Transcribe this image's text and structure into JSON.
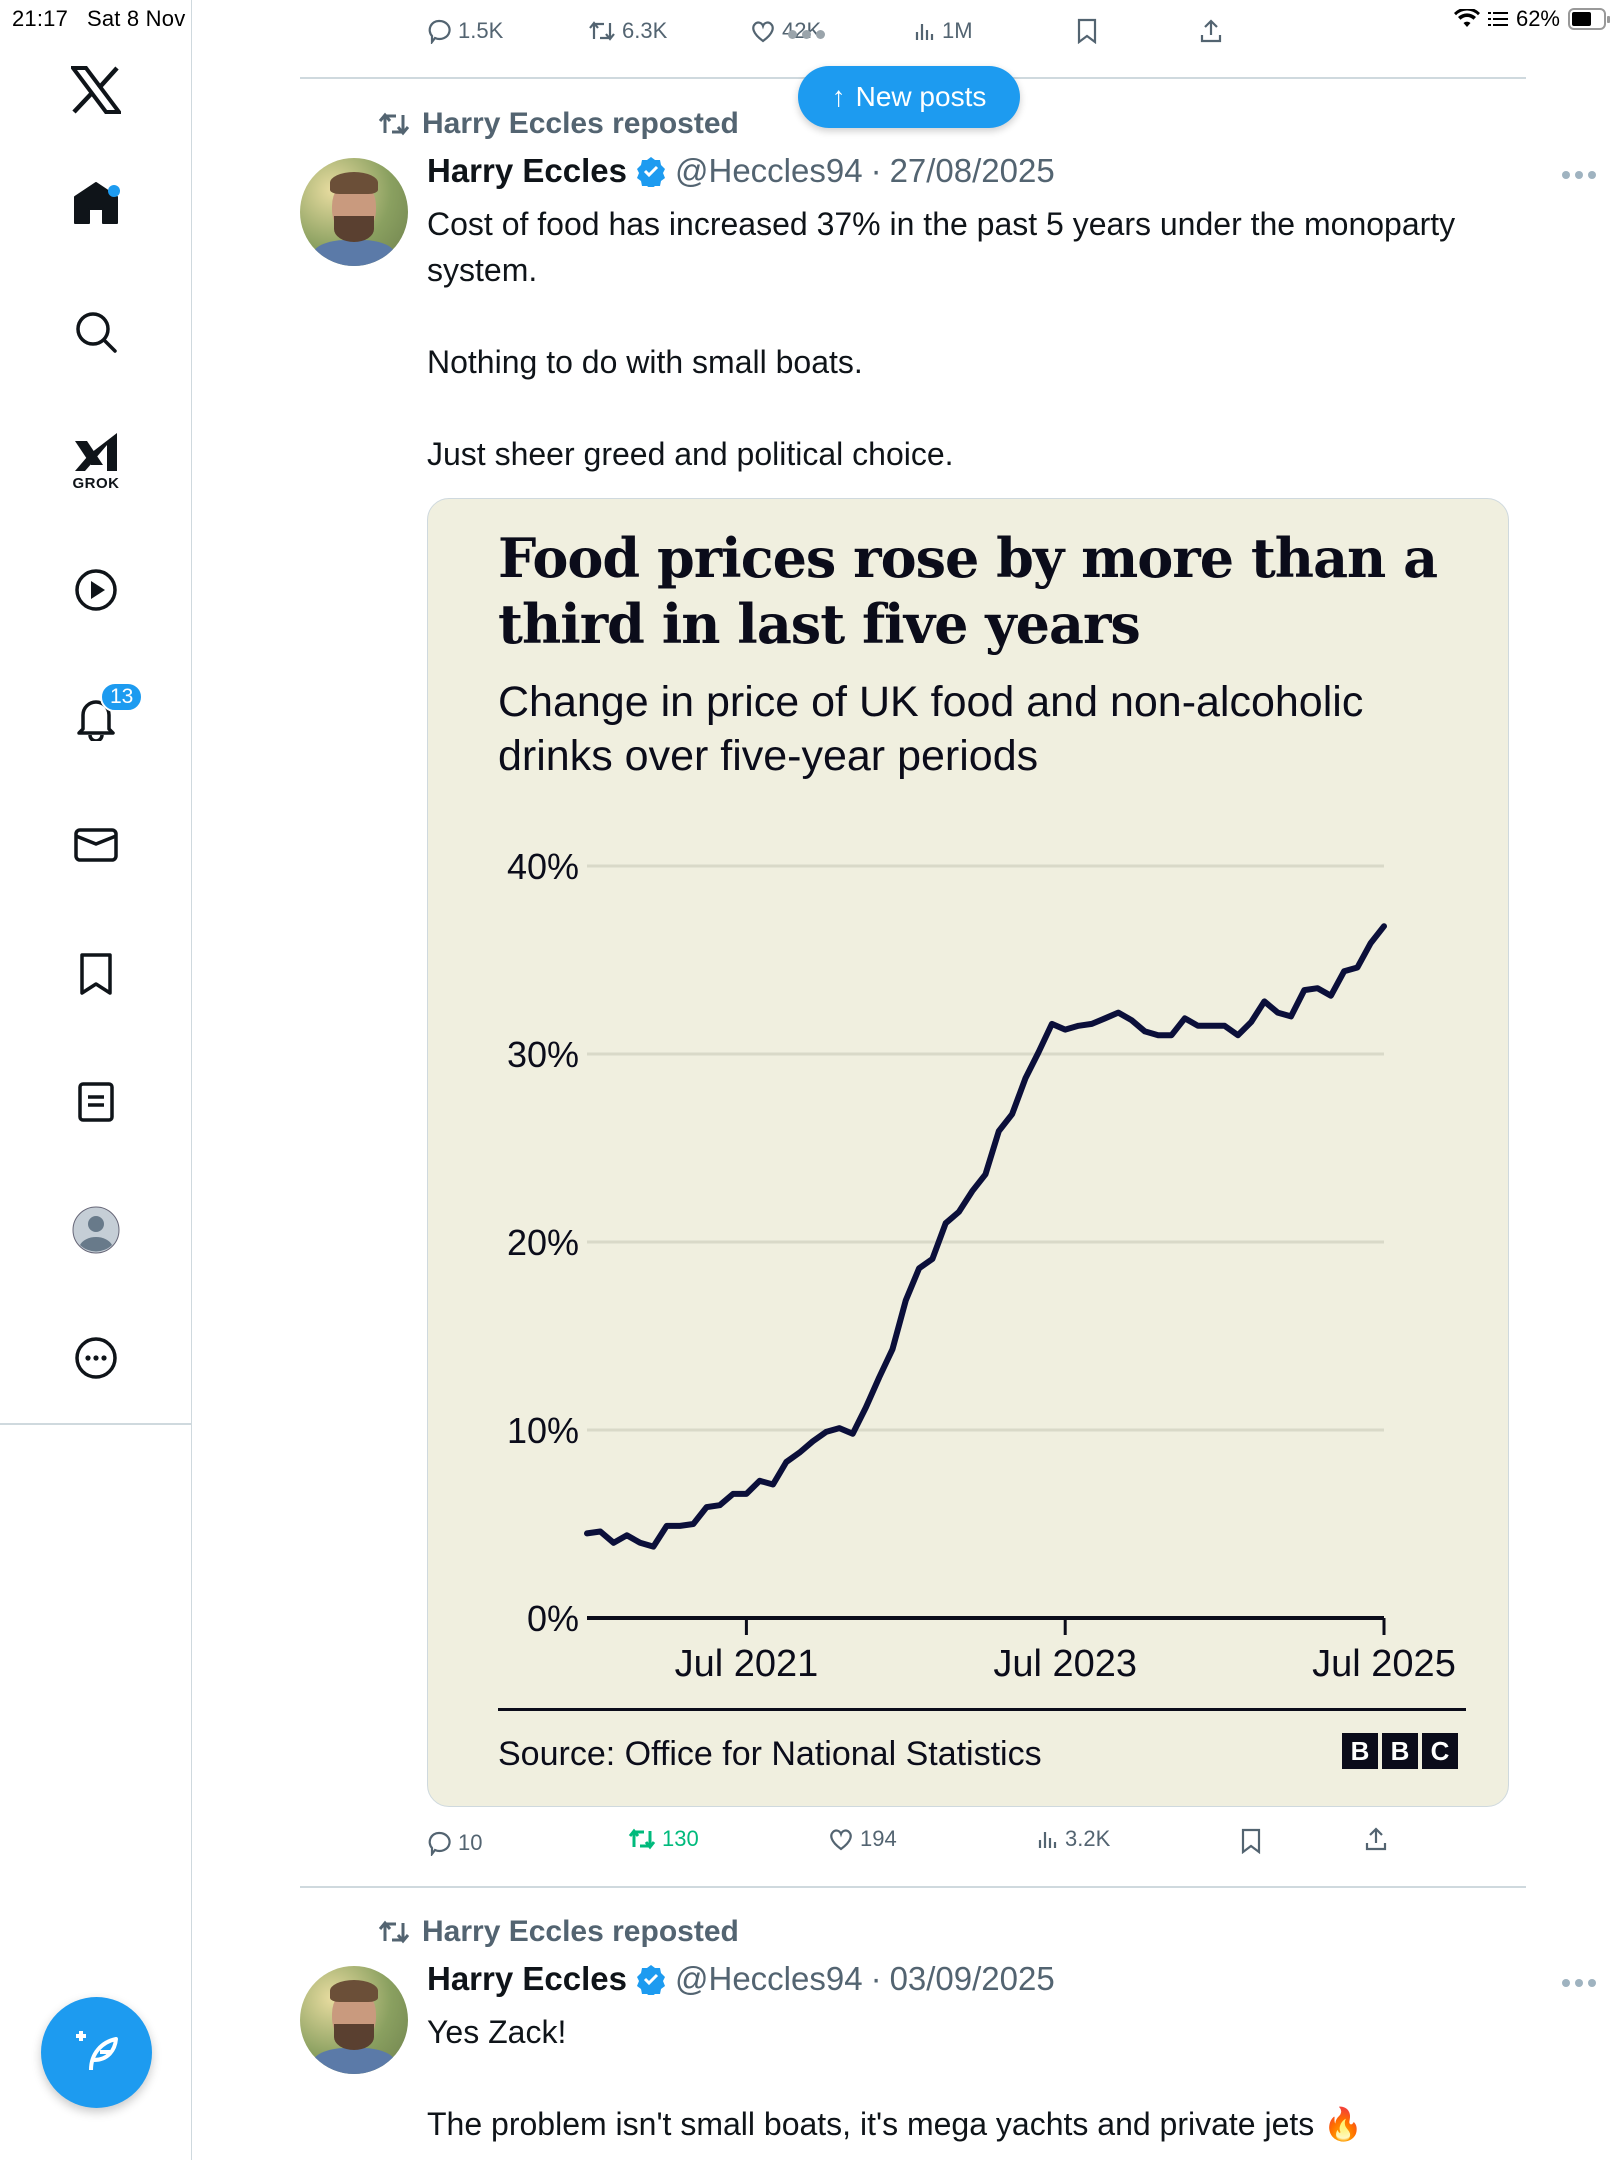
{
  "status_bar": {
    "time": "21:17",
    "date": "Sat 8 Nov",
    "battery_percent": "62%",
    "battery_level": 0.62
  },
  "sidebar": {
    "items": [
      {
        "name": "x-logo",
        "label": ""
      },
      {
        "name": "home",
        "label": "",
        "has_notification_dot": true
      },
      {
        "name": "search",
        "label": ""
      },
      {
        "name": "grok",
        "label": "GROK"
      },
      {
        "name": "video",
        "label": ""
      },
      {
        "name": "notifications",
        "label": "",
        "badge": "13"
      },
      {
        "name": "messages",
        "label": ""
      },
      {
        "name": "bookmarks",
        "label": ""
      },
      {
        "name": "lists",
        "label": ""
      },
      {
        "name": "profile",
        "label": ""
      },
      {
        "name": "more",
        "label": ""
      }
    ],
    "compose_label": "Compose"
  },
  "feed": {
    "new_posts_label": "New posts",
    "previous_tweet_actions": {
      "replies": "1.5K",
      "reposts": "6.3K",
      "likes": "42K",
      "views": "1M"
    },
    "tweets": [
      {
        "repost_label": "Harry Eccles reposted",
        "author_name": "Harry Eccles",
        "handle": "@Heccles94",
        "separator": "·",
        "date": "27/08/2025",
        "text": "Cost of food has increased 37% in the past 5 years under the monoparty system.\n\nNothing to do with small boats.\n\nJust sheer greed and political choice.",
        "actions": {
          "replies": "10",
          "reposts": "130",
          "likes": "194",
          "views": "3.2K"
        },
        "reposted_by_viewer": true
      },
      {
        "repost_label": "Harry Eccles reposted",
        "author_name": "Harry Eccles",
        "handle": "@Heccles94",
        "separator": "·",
        "date": "03/09/2025",
        "text": "Yes Zack!\n\nThe problem isn't small boats, it's mega yachts and private jets 🔥"
      }
    ]
  },
  "colors": {
    "accent": "#1d9bf0",
    "repost_green": "#00ba7c",
    "muted": "#536471",
    "chart_bg": "#f0efdf",
    "chart_line": "#0b0f3a"
  },
  "chart_data": {
    "type": "line",
    "title": "Food prices rose by more than a third in last five years",
    "subtitle": "Change in price of UK food and non-alcoholic drinks over five-year periods",
    "source": "Source: Office for National Statistics",
    "publisher_logo": [
      "B",
      "B",
      "C"
    ],
    "xlabel": "",
    "ylabel": "",
    "x_start": "Jul 2020",
    "x_end": "Jul 2025",
    "x_unit": "month",
    "x_ticks": [
      {
        "label": "Jul 2021",
        "month_index": 12
      },
      {
        "label": "Jul 2023",
        "month_index": 36
      },
      {
        "label": "Jul 2025",
        "month_index": 60
      }
    ],
    "y_ticks": [
      "0%",
      "10%",
      "20%",
      "30%",
      "40%"
    ],
    "y_tick_values": [
      0,
      10,
      20,
      30,
      40
    ],
    "ylim": [
      0,
      40
    ],
    "grid": true,
    "series": [
      {
        "name": "Five-year change in food and non-alcoholic drink prices (%)",
        "values": [
          4.5,
          4.6,
          4.0,
          4.4,
          4.0,
          3.8,
          4.9,
          4.9,
          5.0,
          5.9,
          6.0,
          6.6,
          6.6,
          7.3,
          7.1,
          8.3,
          8.8,
          9.4,
          9.9,
          10.1,
          9.8,
          11.2,
          12.8,
          14.3,
          16.9,
          18.6,
          19.1,
          21.0,
          21.6,
          22.7,
          23.6,
          25.9,
          26.8,
          28.7,
          30.1,
          31.6,
          31.3,
          31.5,
          31.6,
          31.9,
          32.2,
          31.8,
          31.2,
          31.0,
          31.0,
          31.9,
          31.5,
          31.5,
          31.5,
          31.0,
          31.7,
          32.8,
          32.2,
          32.0,
          33.4,
          33.5,
          33.1,
          34.4,
          34.6,
          35.9,
          36.8
        ]
      }
    ]
  }
}
